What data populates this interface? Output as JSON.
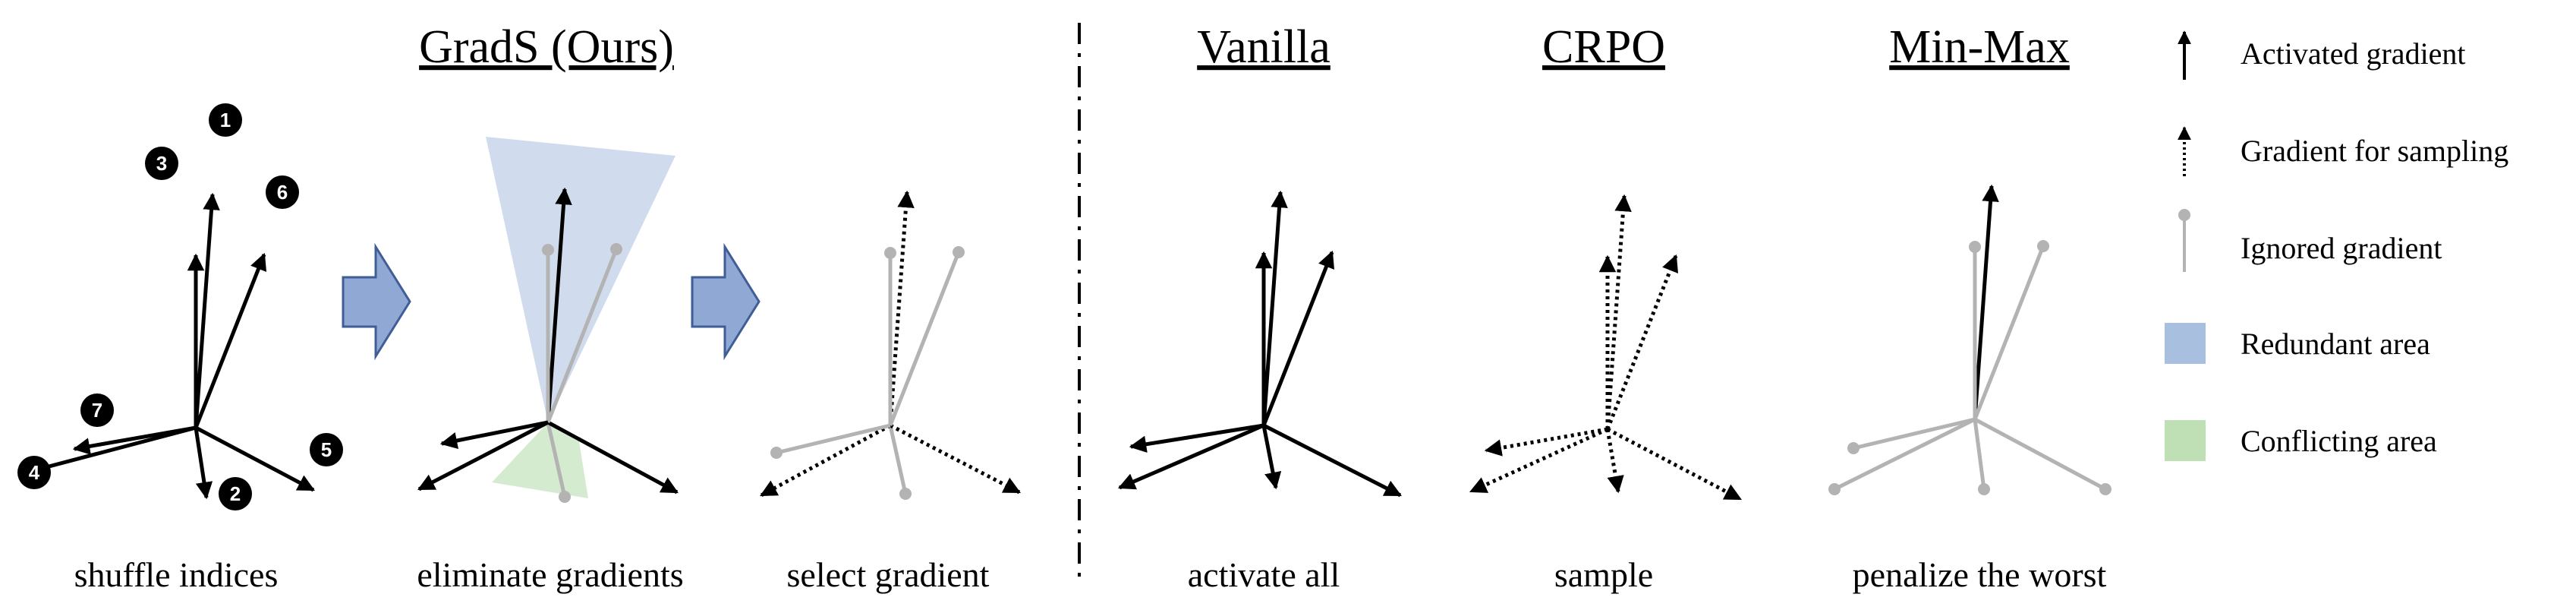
{
  "panels": {
    "shuffle": {
      "caption": "shuffle indices"
    },
    "eliminate": {
      "caption": "eliminate gradients"
    },
    "select": {
      "caption": "select gradient"
    },
    "vanilla": {
      "caption": "activate all"
    },
    "crpo": {
      "caption": "sample"
    },
    "minmax": {
      "caption": "penalize the worst"
    }
  },
  "titles": {
    "grads": "GradS (Ours)",
    "vanilla": "Vanilla",
    "crpo": "CRPO",
    "minmax": "Min-Max"
  },
  "badges": [
    "1",
    "2",
    "3",
    "4",
    "5",
    "6",
    "7"
  ],
  "legend": {
    "activated": "Activated gradient",
    "sampling": "Gradient for sampling",
    "ignored": "Ignored gradient",
    "redundant": "Redundant area",
    "conflicting": "Conflicting area"
  },
  "colors": {
    "activated": "#000000",
    "ignored": "#b3b3b3",
    "redundant": "#a9bfe0",
    "conflicting": "#bfe0b5",
    "process_arrow_fill": "#8fa8d4",
    "process_arrow_stroke": "#3f5d96",
    "badge": "#000000"
  },
  "icons": {
    "process": "right-block-arrow-icon",
    "activated": "solid-arrow-icon",
    "sampling": "dotted-arrow-icon",
    "ignored": "gray-dot-line-icon"
  }
}
